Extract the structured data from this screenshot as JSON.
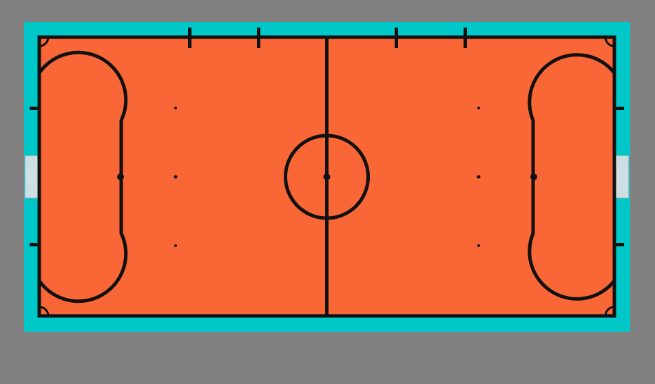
{
  "scene": {
    "type": "futsal-court",
    "colors": {
      "background": "#808080",
      "surround": "#00C8C8",
      "court": "#FA6737",
      "lines": "#111111",
      "goal_net": "#d8e8ec",
      "goal_net_lines": "#8fb0b8"
    },
    "goals": [
      "left",
      "right"
    ],
    "substitution_zone_marks": 4,
    "corner_arcs": 4,
    "penalty_spots": 2,
    "second_penalty_spots": 2,
    "small_spots": 4
  }
}
